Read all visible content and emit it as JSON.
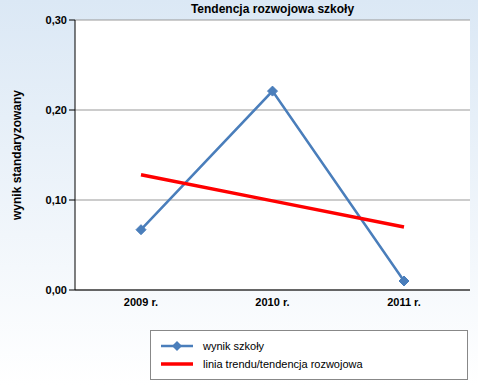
{
  "chart_data": {
    "type": "line",
    "title": "Tendencja rozwojowa szkoły",
    "ylabel": "wynik standaryzowany",
    "categories": [
      "2009 r.",
      "2010 r.",
      "2011 r."
    ],
    "series": [
      {
        "name": "wynik szkoły",
        "color": "#4a7ebb",
        "marker": "diamond",
        "values": [
          0.067,
          0.221,
          0.01
        ]
      },
      {
        "name": "linia trendu/tendencja rozwojowa",
        "color": "#ff0000",
        "marker": "none",
        "values": [
          0.128,
          0.099,
          0.07
        ]
      }
    ],
    "ylim": [
      0,
      0.3
    ],
    "yticks": [
      {
        "value": 0,
        "label": "0,00"
      },
      {
        "value": 0.1,
        "label": "0,10"
      },
      {
        "value": 0.2,
        "label": "0,20"
      },
      {
        "value": 0.3,
        "label": "0,30"
      }
    ],
    "grid": true,
    "legend": "bottom"
  }
}
